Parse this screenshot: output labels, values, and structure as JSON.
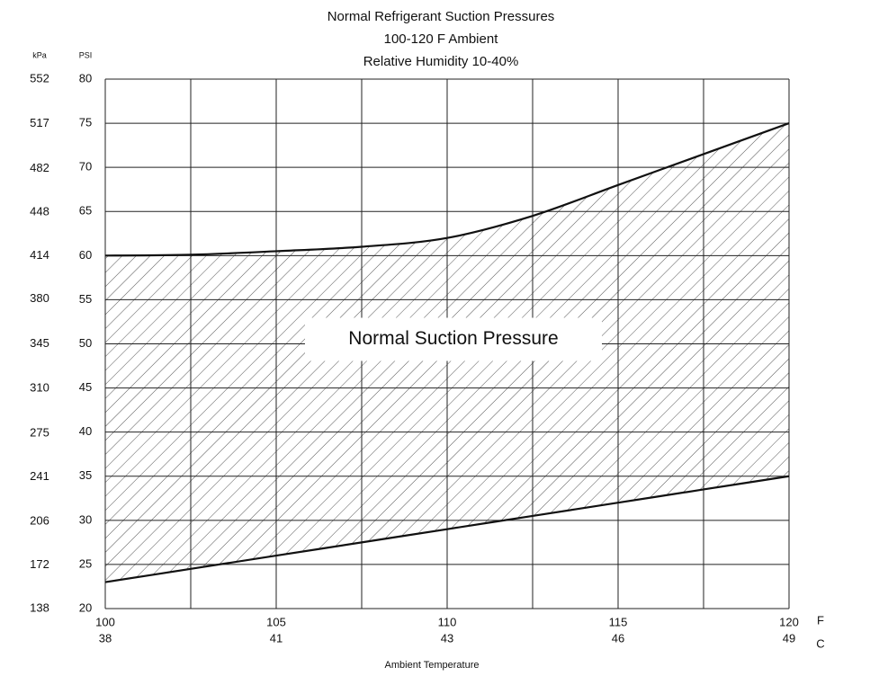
{
  "chart_data": {
    "type": "band",
    "title": [
      "Normal  Refrigerant  Suction  Pressures",
      "100-120 F Ambient",
      "Relative Humidity 10-40%"
    ],
    "x_label": "Ambient Temperature",
    "x_unit": "F",
    "x2_unit": "C",
    "y_unit": "PSI",
    "y2_unit": "kPa",
    "annotation": "Normal Suction Pressure",
    "x": [
      100,
      102.5,
      105,
      107.5,
      110,
      112.5,
      115,
      117.5,
      120
    ],
    "upper": [
      60,
      60.1,
      60.5,
      61,
      62,
      64.5,
      68,
      71.5,
      75
    ],
    "lower": [
      23,
      24.5,
      26,
      27.5,
      29,
      30.5,
      32,
      33.5,
      35
    ],
    "xlim": [
      100,
      120
    ],
    "xticks": [
      100,
      105,
      110,
      115,
      120
    ],
    "xgrid": [
      102.5,
      107.5,
      112.5,
      117.5
    ],
    "x2ticks": [
      {
        "value": 100,
        "label": "38"
      },
      {
        "value": 105,
        "label": "41"
      },
      {
        "value": 110,
        "label": "43"
      },
      {
        "value": 115,
        "label": "46"
      },
      {
        "value": 120,
        "label": "49"
      }
    ],
    "ylim": [
      20,
      80
    ],
    "yticks": [
      20,
      25,
      30,
      35,
      40,
      45,
      50,
      55,
      60,
      65,
      70,
      75,
      80
    ],
    "y2lim": [
      138,
      552
    ],
    "y2ticks": [
      138,
      172,
      206,
      241,
      275,
      310,
      345,
      380,
      414,
      448,
      482,
      517,
      552
    ],
    "grid": true,
    "line_color": "#111111",
    "hatch_color": "#555555"
  }
}
